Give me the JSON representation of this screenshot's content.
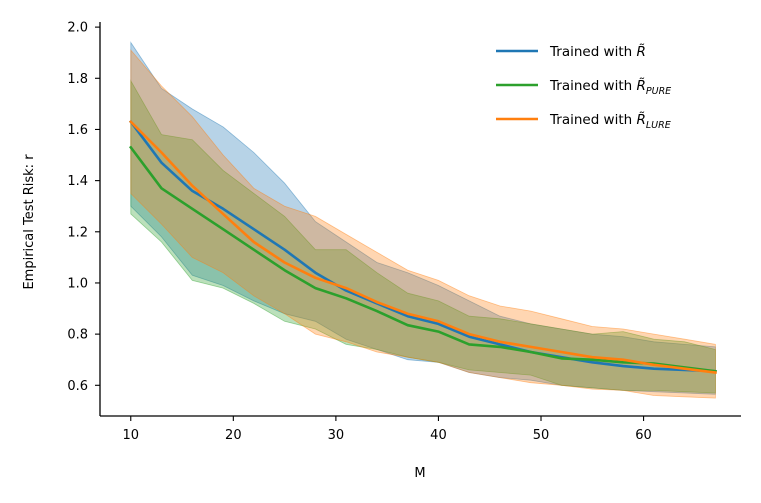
{
  "chart_data": {
    "type": "line",
    "xlabel": "M",
    "ylabel": "Empirical Test Risk: r",
    "xlim": [
      7,
      69.5
    ],
    "ylim": [
      0.48,
      2.02
    ],
    "xticks": [
      10,
      20,
      30,
      40,
      50,
      60
    ],
    "yticks": [
      0.6,
      0.8,
      1.0,
      1.2,
      1.4,
      1.6,
      1.8,
      2.0
    ],
    "x": [
      10,
      13,
      16,
      19,
      22,
      25,
      28,
      31,
      34,
      37,
      40,
      43,
      46,
      49,
      52,
      55,
      58,
      61,
      64,
      67
    ],
    "legend_position": "top-right",
    "series": [
      {
        "name": "Trained with R̃",
        "legend_prefix": "Trained with ",
        "legend_var": "R̃",
        "legend_sub": "",
        "color": "#1f77b4",
        "values": [
          1.63,
          1.47,
          1.36,
          1.29,
          1.21,
          1.13,
          1.04,
          0.97,
          0.92,
          0.87,
          0.84,
          0.79,
          0.76,
          0.73,
          0.71,
          0.69,
          0.675,
          0.665,
          0.66,
          0.655
        ],
        "upper": [
          1.94,
          1.76,
          1.68,
          1.61,
          1.51,
          1.39,
          1.24,
          1.16,
          1.08,
          1.04,
          0.99,
          0.93,
          0.87,
          0.84,
          0.82,
          0.8,
          0.79,
          0.77,
          0.76,
          0.75
        ],
        "lower": [
          1.3,
          1.18,
          1.03,
          0.99,
          0.93,
          0.88,
          0.85,
          0.78,
          0.74,
          0.7,
          0.69,
          0.65,
          0.63,
          0.62,
          0.6,
          0.59,
          0.58,
          0.575,
          0.57,
          0.565
        ]
      },
      {
        "name": "Trained with R̃_PURE",
        "legend_prefix": "Trained with ",
        "legend_var": "R̃",
        "legend_sub": "PURE",
        "color": "#2ca02c",
        "values": [
          1.53,
          1.37,
          1.29,
          1.21,
          1.13,
          1.05,
          0.98,
          0.94,
          0.89,
          0.835,
          0.81,
          0.76,
          0.75,
          0.73,
          0.705,
          0.7,
          0.69,
          0.685,
          0.67,
          0.655
        ],
        "upper": [
          1.79,
          1.58,
          1.56,
          1.44,
          1.35,
          1.26,
          1.13,
          1.13,
          1.04,
          0.96,
          0.93,
          0.87,
          0.86,
          0.84,
          0.82,
          0.8,
          0.81,
          0.78,
          0.77,
          0.74
        ],
        "lower": [
          1.27,
          1.16,
          1.01,
          0.98,
          0.92,
          0.85,
          0.82,
          0.76,
          0.74,
          0.71,
          0.69,
          0.66,
          0.65,
          0.64,
          0.6,
          0.59,
          0.58,
          0.58,
          0.575,
          0.57
        ]
      },
      {
        "name": "Trained with R̃_LURE",
        "legend_prefix": "Trained with ",
        "legend_var": "R̃",
        "legend_sub": "LURE",
        "color": "#ff7f0e",
        "values": [
          1.63,
          1.51,
          1.38,
          1.27,
          1.16,
          1.08,
          1.02,
          0.98,
          0.925,
          0.88,
          0.85,
          0.8,
          0.77,
          0.75,
          0.73,
          0.71,
          0.7,
          0.68,
          0.665,
          0.65
        ],
        "upper": [
          1.91,
          1.77,
          1.65,
          1.5,
          1.37,
          1.3,
          1.26,
          1.19,
          1.12,
          1.05,
          1.01,
          0.95,
          0.91,
          0.89,
          0.86,
          0.83,
          0.82,
          0.8,
          0.78,
          0.76
        ],
        "lower": [
          1.35,
          1.23,
          1.1,
          1.04,
          0.95,
          0.88,
          0.8,
          0.77,
          0.73,
          0.71,
          0.69,
          0.65,
          0.63,
          0.61,
          0.6,
          0.585,
          0.58,
          0.56,
          0.555,
          0.55
        ]
      }
    ]
  }
}
